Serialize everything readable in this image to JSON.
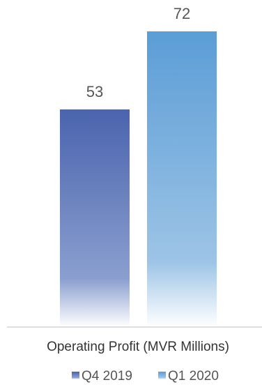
{
  "chart_data": {
    "type": "bar",
    "categories": [
      "Operating Profit (MVR Millions)"
    ],
    "series": [
      {
        "name": "Q4 2019",
        "values": [
          53
        ],
        "color": "#4a64ae"
      },
      {
        "name": "Q1 2020",
        "values": [
          72
        ],
        "color": "#5b9dd6"
      }
    ],
    "ylim": [
      0,
      75
    ],
    "grid": false,
    "legend_position": "bottom"
  }
}
